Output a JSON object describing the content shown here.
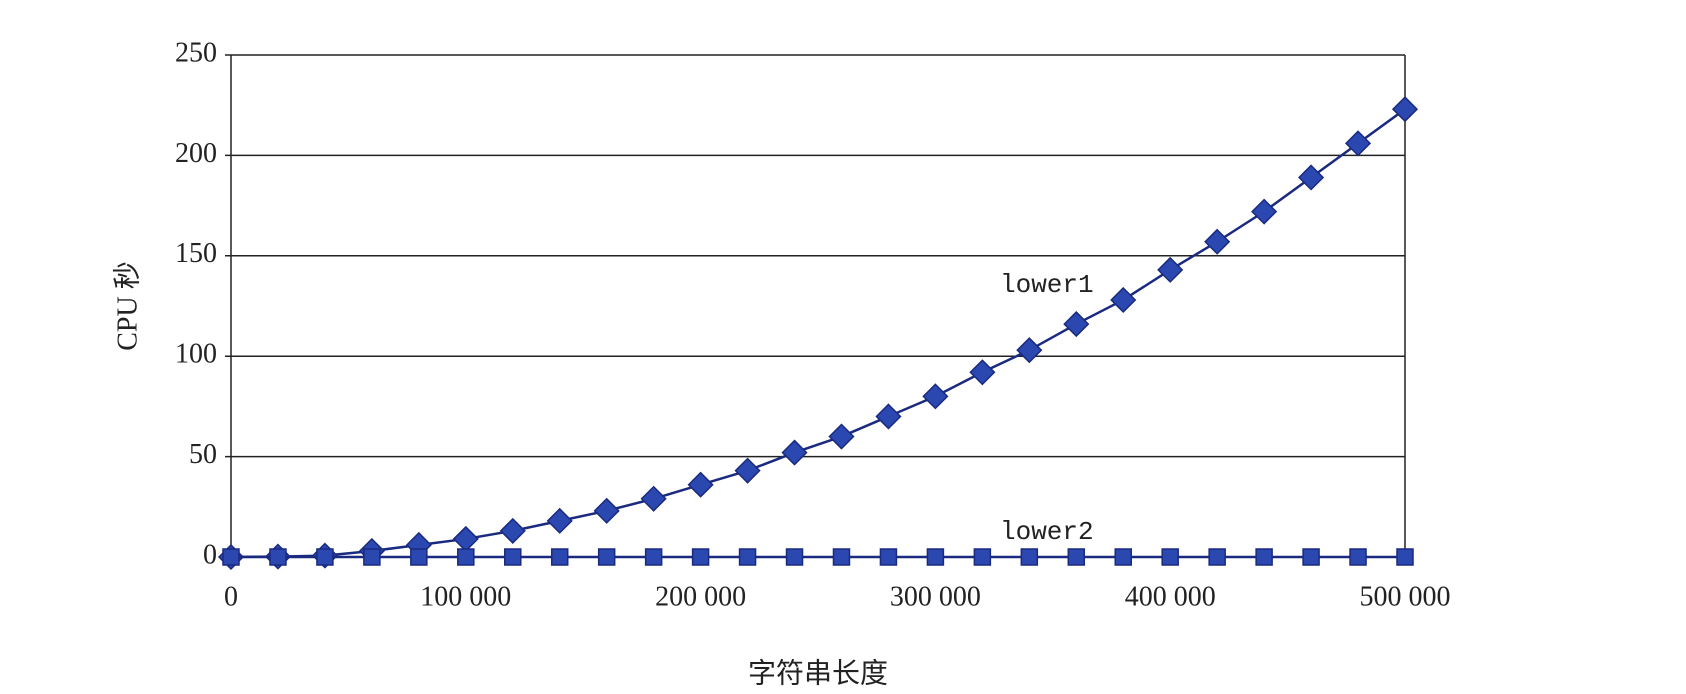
{
  "chart_data": {
    "type": "line",
    "x_label": "字符串长度",
    "y_label": "CPU 秒",
    "x": [
      0,
      20000,
      40000,
      60000,
      80000,
      100000,
      120000,
      140000,
      160000,
      180000,
      200000,
      220000,
      240000,
      260000,
      280000,
      300000,
      320000,
      340000,
      360000,
      380000,
      400000,
      420000,
      440000,
      460000,
      480000,
      500000
    ],
    "series": [
      {
        "name": "lower1",
        "color": "#2b47b0",
        "marker": "diamond",
        "values": [
          0,
          0.2,
          0.7,
          3,
          6,
          9,
          13,
          18,
          23,
          29,
          36,
          43,
          52,
          60,
          70,
          80,
          92,
          103,
          116,
          128,
          143,
          157,
          172,
          189,
          206,
          223
        ]
      },
      {
        "name": "lower2",
        "color": "#2b47b0",
        "marker": "square",
        "values": [
          0,
          0,
          0,
          0,
          0,
          0,
          0,
          0,
          0,
          0,
          0,
          0,
          0,
          0,
          0,
          0,
          0,
          0,
          0,
          0,
          0,
          0,
          0,
          0,
          0,
          0
        ]
      }
    ],
    "xlim": [
      0,
      500000
    ],
    "xticks": [
      0,
      {
        "value": 100000,
        "label": "100 000"
      },
      {
        "value": 200000,
        "label": "200 000"
      },
      {
        "value": 300000,
        "label": "300 000"
      },
      {
        "value": 400000,
        "label": "400 000"
      },
      {
        "value": 500000,
        "label": "500 000"
      }
    ],
    "ylim": [
      0,
      250
    ],
    "yticks": [
      0,
      50,
      100,
      150,
      200,
      250
    ],
    "grid": true
  }
}
